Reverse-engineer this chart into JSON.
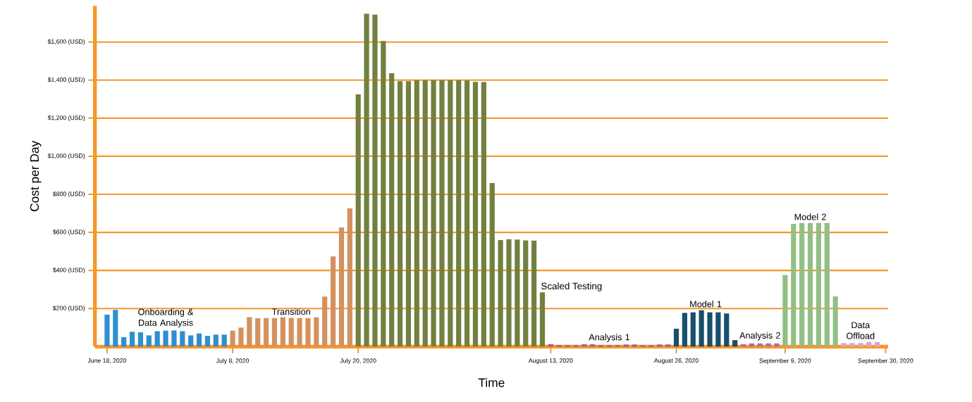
{
  "chart_data": {
    "type": "bar",
    "xlabel": "Time",
    "ylabel": "Cost per Day",
    "categories": [
      "June 18, 2020",
      null,
      null,
      null,
      null,
      null,
      null,
      null,
      null,
      null,
      null,
      null,
      null,
      null,
      null,
      "July 8, 2020",
      null,
      null,
      null,
      null,
      null,
      null,
      null,
      null,
      null,
      null,
      null,
      null,
      null,
      null,
      "July 20, 2020",
      null,
      null,
      null,
      null,
      null,
      null,
      null,
      null,
      null,
      null,
      null,
      null,
      null,
      null,
      null,
      null,
      null,
      null,
      null,
      null,
      null,
      null,
      "August 13, 2020",
      null,
      null,
      null,
      null,
      null,
      null,
      null,
      null,
      null,
      null,
      null,
      null,
      null,
      null,
      "August 26, 2020",
      null,
      null,
      null,
      null,
      null,
      null,
      null,
      null,
      null,
      null,
      null,
      null,
      "September 9, 2020",
      null,
      null,
      null,
      null,
      null,
      null,
      null,
      null,
      null,
      null,
      null,
      "September 30, 2020"
    ],
    "series": [
      {
        "name": "Onboarding & Data Analysis",
        "color": "#2e8fd0",
        "values": [
          168,
          193,
          50,
          78,
          75,
          59,
          81,
          84,
          85,
          81,
          59,
          69,
          56,
          63,
          63,
          null,
          null,
          null,
          null,
          null,
          null,
          null,
          null,
          null,
          null,
          null,
          null,
          null,
          null,
          null,
          null,
          null,
          null,
          null,
          null,
          null,
          null,
          null,
          null,
          null,
          null,
          null,
          null,
          null,
          null,
          null,
          null,
          null,
          null,
          null,
          null,
          null,
          null,
          null,
          null,
          null,
          null,
          null,
          null,
          null,
          null,
          null,
          null,
          null,
          null,
          null,
          null,
          null,
          null,
          null,
          null,
          null,
          null,
          null,
          null,
          null,
          null,
          null,
          null,
          null,
          null,
          null,
          null,
          null,
          null,
          null,
          null,
          null,
          null,
          null,
          null,
          null,
          null,
          null
        ]
      },
      {
        "name": "Transition",
        "color": "#d4915e",
        "values": [
          null,
          null,
          null,
          null,
          null,
          null,
          null,
          null,
          null,
          null,
          null,
          null,
          null,
          null,
          null,
          84,
          100,
          155,
          149,
          150,
          150,
          154,
          151,
          150,
          150,
          154,
          263,
          474,
          626,
          726,
          null,
          null,
          null,
          null,
          null,
          null,
          null,
          null,
          null,
          null,
          null,
          null,
          null,
          null,
          null,
          null,
          null,
          null,
          null,
          null,
          null,
          null,
          null,
          null,
          null,
          null,
          null,
          null,
          null,
          null,
          null,
          null,
          null,
          null,
          null,
          null,
          null,
          null,
          null,
          null,
          null,
          null,
          null,
          null,
          null,
          null,
          null,
          null,
          null,
          null,
          null,
          null,
          null,
          null,
          null,
          null,
          null,
          null,
          null,
          null,
          null,
          null,
          null,
          null
        ]
      },
      {
        "name": "Scaled Testing",
        "color": "#728040",
        "values": [
          null,
          null,
          null,
          null,
          null,
          null,
          null,
          null,
          null,
          null,
          null,
          null,
          null,
          null,
          null,
          null,
          null,
          null,
          null,
          null,
          null,
          null,
          null,
          null,
          null,
          null,
          null,
          null,
          null,
          null,
          1325,
          1749,
          1744,
          1605,
          1436,
          1395,
          1395,
          1399,
          1399,
          1400,
          1400,
          1399,
          1399,
          1398,
          1391,
          1390,
          859,
          560,
          564,
          562,
          558,
          557,
          285,
          null,
          null,
          null,
          null,
          null,
          null,
          null,
          null,
          null,
          null,
          null,
          null,
          null,
          null,
          null,
          null,
          null,
          null,
          null,
          null,
          null,
          null,
          null,
          null,
          null,
          null,
          null,
          null,
          null,
          null,
          null,
          null,
          null,
          null,
          null,
          null,
          null,
          null,
          null,
          null,
          null
        ]
      },
      {
        "name": "Analysis 1",
        "color": "#9b59a8",
        "values": [
          null,
          null,
          null,
          null,
          null,
          null,
          null,
          null,
          null,
          null,
          null,
          null,
          null,
          null,
          null,
          null,
          null,
          null,
          null,
          null,
          null,
          null,
          null,
          null,
          null,
          null,
          null,
          null,
          null,
          null,
          null,
          null,
          null,
          null,
          null,
          null,
          null,
          null,
          null,
          null,
          null,
          null,
          null,
          null,
          null,
          null,
          null,
          null,
          null,
          null,
          null,
          null,
          null,
          13,
          8,
          8,
          8,
          12,
          12,
          8,
          8,
          8,
          11,
          11,
          8,
          8,
          11,
          11,
          null,
          null,
          null,
          null,
          null,
          null,
          null,
          null,
          null,
          null,
          null,
          null,
          null,
          null,
          null,
          null,
          null,
          null,
          null,
          null,
          null,
          null,
          null,
          null,
          null,
          null
        ]
      },
      {
        "name": "Model 1",
        "color": "#174f6e",
        "values": [
          null,
          null,
          null,
          null,
          null,
          null,
          null,
          null,
          null,
          null,
          null,
          null,
          null,
          null,
          null,
          null,
          null,
          null,
          null,
          null,
          null,
          null,
          null,
          null,
          null,
          null,
          null,
          null,
          null,
          null,
          null,
          null,
          null,
          null,
          null,
          null,
          null,
          null,
          null,
          null,
          null,
          null,
          null,
          null,
          null,
          null,
          null,
          null,
          null,
          null,
          null,
          null,
          null,
          null,
          null,
          null,
          null,
          null,
          null,
          null,
          null,
          null,
          null,
          null,
          null,
          null,
          null,
          null,
          94,
          177,
          180,
          191,
          180,
          180,
          174,
          34,
          null,
          null,
          null,
          null,
          null,
          null,
          null,
          null,
          null,
          null,
          null,
          null,
          null,
          null,
          null,
          null,
          null,
          null
        ]
      },
      {
        "name": "Analysis 2",
        "color": "#a870b5",
        "values": [
          null,
          null,
          null,
          null,
          null,
          null,
          null,
          null,
          null,
          null,
          null,
          null,
          null,
          null,
          null,
          null,
          null,
          null,
          null,
          null,
          null,
          null,
          null,
          null,
          null,
          null,
          null,
          null,
          null,
          null,
          null,
          null,
          null,
          null,
          null,
          null,
          null,
          null,
          null,
          null,
          null,
          null,
          null,
          null,
          null,
          null,
          null,
          null,
          null,
          null,
          null,
          null,
          null,
          null,
          null,
          null,
          null,
          null,
          null,
          null,
          null,
          null,
          null,
          null,
          null,
          null,
          null,
          null,
          null,
          null,
          null,
          null,
          null,
          null,
          null,
          null,
          13,
          17,
          17,
          17,
          17,
          null,
          null,
          null,
          null,
          null,
          null,
          null,
          null,
          null,
          null,
          null,
          null,
          null
        ]
      },
      {
        "name": "Model 2",
        "color": "#92bf84",
        "values": [
          null,
          null,
          null,
          null,
          null,
          null,
          null,
          null,
          null,
          null,
          null,
          null,
          null,
          null,
          null,
          null,
          null,
          null,
          null,
          null,
          null,
          null,
          null,
          null,
          null,
          null,
          null,
          null,
          null,
          null,
          null,
          null,
          null,
          null,
          null,
          null,
          null,
          null,
          null,
          null,
          null,
          null,
          null,
          null,
          null,
          null,
          null,
          null,
          null,
          null,
          null,
          null,
          null,
          null,
          null,
          null,
          null,
          null,
          null,
          null,
          null,
          null,
          null,
          null,
          null,
          null,
          null,
          null,
          null,
          null,
          null,
          null,
          null,
          null,
          null,
          null,
          null,
          null,
          null,
          null,
          null,
          376,
          645,
          649,
          649,
          649,
          649,
          264,
          null,
          null,
          null,
          null,
          null,
          null
        ]
      },
      {
        "name": "Data Offload",
        "color": "#d2a8d4",
        "values": [
          null,
          null,
          null,
          null,
          null,
          null,
          null,
          null,
          null,
          null,
          null,
          null,
          null,
          null,
          null,
          null,
          null,
          null,
          null,
          null,
          null,
          null,
          null,
          null,
          null,
          null,
          null,
          null,
          null,
          null,
          null,
          null,
          null,
          null,
          null,
          null,
          null,
          null,
          null,
          null,
          null,
          null,
          null,
          null,
          null,
          null,
          null,
          null,
          null,
          null,
          null,
          null,
          null,
          null,
          null,
          null,
          null,
          null,
          null,
          null,
          null,
          null,
          null,
          null,
          null,
          null,
          null,
          null,
          null,
          null,
          null,
          null,
          null,
          null,
          null,
          null,
          null,
          null,
          null,
          null,
          null,
          null,
          null,
          null,
          null,
          null,
          null,
          null,
          19,
          19,
          19,
          24,
          24,
          null
        ]
      }
    ],
    "ylim": [
      0,
      1790
    ],
    "yticks": [
      {
        "value": 200,
        "label": "$200 (USD)"
      },
      {
        "value": 400,
        "label": "$400 (USD)"
      },
      {
        "value": 600,
        "label": "$600 (USD)"
      },
      {
        "value": 800,
        "label": "$800 (USD)"
      },
      {
        "value": 1000,
        "label": "$1,000 (USD)"
      },
      {
        "value": 1200,
        "label": "$1,200 (USD)"
      },
      {
        "value": 1400,
        "label": "$1,400 (USD)"
      },
      {
        "value": 1600,
        "label": "$1,600 (USD)"
      }
    ],
    "grid": "y"
  }
}
